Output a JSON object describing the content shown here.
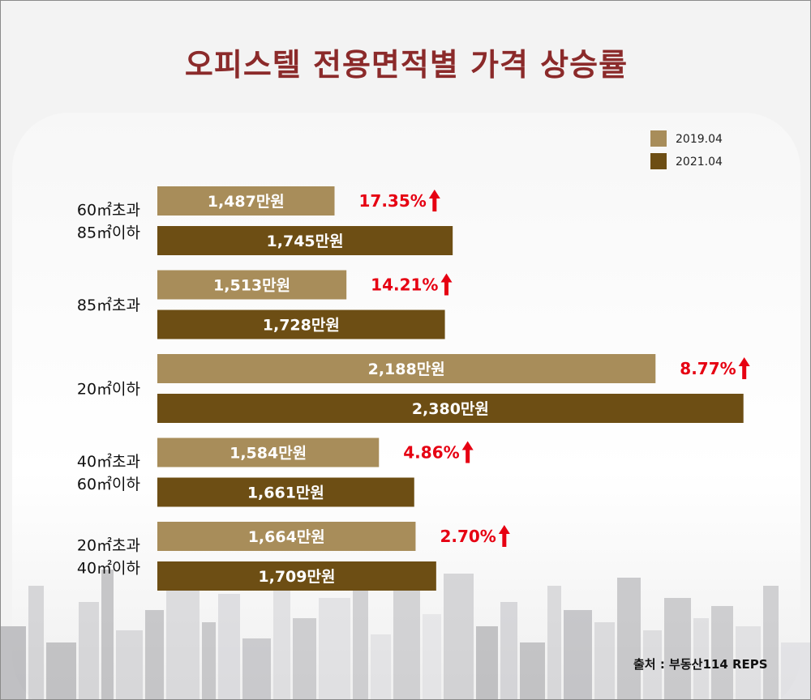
{
  "title": "오피스텔 전용면적별 가격 상승률",
  "source": "출처 : 부동산114 REPS",
  "colors": {
    "title": "#8b2a2a",
    "s2019": "#a88d5a",
    "s2021": "#6d4e14",
    "pct": "#e60012"
  },
  "chart_data": {
    "type": "bar",
    "orientation": "horizontal",
    "title": "오피스텔 전용면적별 가격 상승률",
    "legend_position": "top-right",
    "categories": [
      [
        "60㎡초과",
        "85㎡이하"
      ],
      [
        "85㎡초과"
      ],
      [
        "20㎡이하"
      ],
      [
        "40㎡초과",
        "60㎡이하"
      ],
      [
        "20㎡초과",
        "40㎡이하"
      ]
    ],
    "series": [
      {
        "name": "2019.04",
        "values": [
          1487,
          1513,
          2188,
          1584,
          1664
        ],
        "labels": [
          "1,487만원",
          "1,513만원",
          "2,188만원",
          "1,584만원",
          "1,664만원"
        ]
      },
      {
        "name": "2021.04",
        "values": [
          1745,
          1728,
          2380,
          1661,
          1709
        ],
        "labels": [
          "1,745만원",
          "1,728만원",
          "2,380만원",
          "1,661만원",
          "1,709만원"
        ]
      }
    ],
    "change_labels": [
      "17.35%",
      "14.21%",
      "8.77%",
      "4.86%",
      "2.70%"
    ],
    "xlim": [
      1100,
      2400
    ]
  }
}
